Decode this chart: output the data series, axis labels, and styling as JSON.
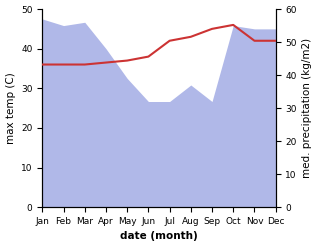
{
  "months": [
    "Jan",
    "Feb",
    "Mar",
    "Apr",
    "May",
    "Jun",
    "Jul",
    "Aug",
    "Sep",
    "Oct",
    "Nov",
    "Dec"
  ],
  "month_indices": [
    0,
    1,
    2,
    3,
    4,
    5,
    6,
    7,
    8,
    9,
    10,
    11
  ],
  "precipitation": [
    57,
    55,
    56,
    48,
    39,
    32,
    32,
    37,
    32,
    55,
    54,
    54
  ],
  "temperature": [
    36,
    36,
    36,
    36.5,
    37,
    38,
    42,
    43,
    45,
    46,
    42,
    42
  ],
  "precip_color": "#b0b8e8",
  "temp_color": "#cc3333",
  "ylabel_left": "max temp (C)",
  "ylabel_right": "med. precipitation (kg/m2)",
  "xlabel": "date (month)",
  "ylim_left": [
    0,
    50
  ],
  "ylim_right": [
    0,
    60
  ],
  "bg_color": "#ffffff",
  "label_fontsize": 7.5,
  "tick_fontsize": 6.5,
  "temp_linewidth": 1.5
}
